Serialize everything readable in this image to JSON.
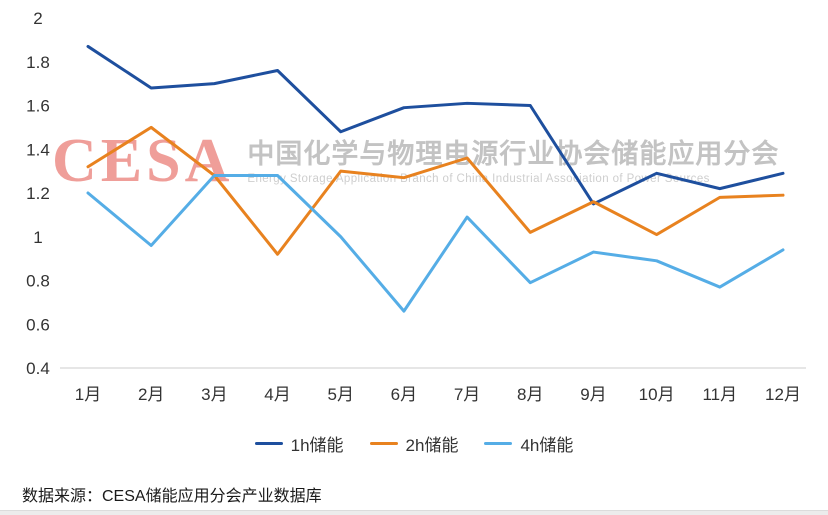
{
  "chart_data": {
    "type": "line",
    "categories": [
      "1月",
      "2月",
      "3月",
      "4月",
      "5月",
      "6月",
      "7月",
      "8月",
      "9月",
      "10月",
      "11月",
      "12月"
    ],
    "series": [
      {
        "name": "1h储能",
        "color": "#1e4f9e",
        "values": [
          1.87,
          1.68,
          1.7,
          1.76,
          1.48,
          1.59,
          1.61,
          1.6,
          1.15,
          1.29,
          1.22,
          1.29
        ]
      },
      {
        "name": "2h储能",
        "color": "#e8821f",
        "values": [
          1.32,
          1.5,
          1.28,
          0.92,
          1.3,
          1.27,
          1.36,
          1.02,
          1.16,
          1.01,
          1.18,
          1.19
        ]
      },
      {
        "name": "4h储能",
        "color": "#55ade6",
        "values": [
          1.2,
          0.96,
          1.28,
          1.28,
          1.0,
          0.66,
          1.09,
          0.79,
          0.93,
          0.89,
          0.77,
          0.94
        ]
      }
    ],
    "ylim": [
      0.4,
      2
    ],
    "yticks": [
      2,
      1.8,
      1.6,
      1.4,
      1.2,
      1,
      0.8,
      0.6,
      0.4
    ],
    "ytick_labels": [
      "2",
      "1.8",
      "1.6",
      "1.4",
      "1.2",
      "1",
      "0.8",
      "0.6",
      "0.4"
    ],
    "grid": false,
    "legend_position": "bottom",
    "title": "",
    "xlabel": "",
    "ylabel": ""
  },
  "watermark": {
    "logo": "CESA",
    "title_cn": "中国化学与物理电源行业协会储能应用分会",
    "subtitle_en": "Energy Storage Application Branch of China Industrial Association of Power Sources"
  },
  "source": "数据来源：CESA储能应用分会产业数据库",
  "colors": {
    "axis_line": "#cccccc",
    "tick_text": "#333333"
  }
}
